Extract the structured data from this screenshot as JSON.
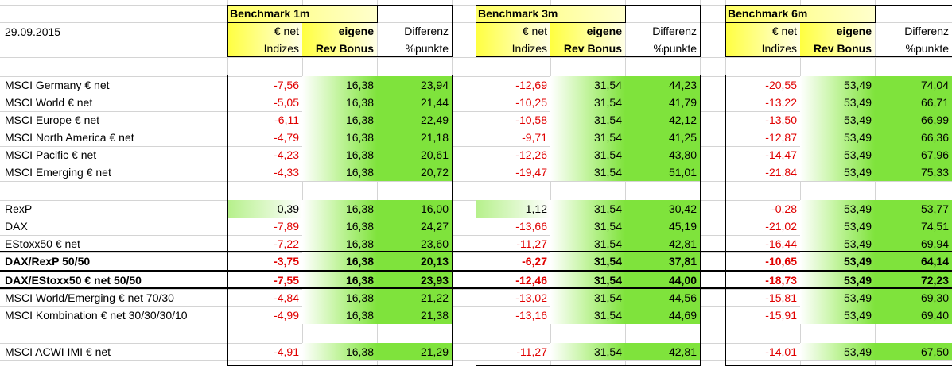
{
  "date": "29.09.2015",
  "groups": [
    {
      "title": "Benchmark 1m"
    },
    {
      "title": "Benchmark 3m"
    },
    {
      "title": "Benchmark 6m"
    }
  ],
  "col_headers": {
    "a1": "€ net",
    "a2": "Indizes",
    "b1": "eigene",
    "b2": "Rev Bonus",
    "c1": "Differenz",
    "c2": "%punkte"
  },
  "rows": [
    {
      "label": "MSCI Germany € net",
      "v": [
        "-7,56",
        "16,38",
        "23,94",
        "-12,69",
        "31,54",
        "44,23",
        "-20,55",
        "53,49",
        "74,04"
      ]
    },
    {
      "label": "MSCI World € net",
      "v": [
        "-5,05",
        "16,38",
        "21,44",
        "-10,25",
        "31,54",
        "41,79",
        "-13,22",
        "53,49",
        "66,71"
      ]
    },
    {
      "label": "MSCI Europe € net",
      "v": [
        "-6,11",
        "16,38",
        "22,49",
        "-10,58",
        "31,54",
        "42,12",
        "-13,50",
        "53,49",
        "66,99"
      ]
    },
    {
      "label": "MSCI North America € net",
      "v": [
        "-4,79",
        "16,38",
        "21,18",
        "-9,71",
        "31,54",
        "41,25",
        "-12,87",
        "53,49",
        "66,36"
      ]
    },
    {
      "label": "MSCI Pacific € net",
      "v": [
        "-4,23",
        "16,38",
        "20,61",
        "-12,26",
        "31,54",
        "43,80",
        "-14,47",
        "53,49",
        "67,96"
      ]
    },
    {
      "label": "MSCI Emerging € net",
      "v": [
        "-4,33",
        "16,38",
        "20,72",
        "-19,47",
        "31,54",
        "51,01",
        "-21,84",
        "53,49",
        "75,33"
      ]
    },
    {
      "label": "RexP",
      "v": [
        "0,39",
        "16,38",
        "16,00",
        "1,12",
        "31,54",
        "30,42",
        "-0,28",
        "53,49",
        "53,77"
      ]
    },
    {
      "label": "DAX",
      "v": [
        "-7,89",
        "16,38",
        "24,27",
        "-13,66",
        "31,54",
        "45,19",
        "-21,02",
        "53,49",
        "74,51"
      ]
    },
    {
      "label": "EStoxx50 € net",
      "v": [
        "-7,22",
        "16,38",
        "23,60",
        "-11,27",
        "31,54",
        "42,81",
        "-16,44",
        "53,49",
        "69,94"
      ]
    },
    {
      "label": "DAX/RexP 50/50",
      "v": [
        "-3,75",
        "16,38",
        "20,13",
        "-6,27",
        "31,54",
        "37,81",
        "-10,65",
        "53,49",
        "64,14"
      ]
    },
    {
      "label": "DAX/EStoxx50 € net 50/50",
      "v": [
        "-7,55",
        "16,38",
        "23,93",
        "-12,46",
        "31,54",
        "44,00",
        "-18,73",
        "53,49",
        "72,23"
      ]
    },
    {
      "label": "MSCI World/Emerging € net 70/30",
      "v": [
        "-4,84",
        "16,38",
        "21,22",
        "-13,02",
        "31,54",
        "44,56",
        "-15,81",
        "53,49",
        "69,30"
      ]
    },
    {
      "label": "MSCI Kombination € net 30/30/30/10",
      "v": [
        "-4,99",
        "16,38",
        "21,38",
        "-13,16",
        "31,54",
        "44,69",
        "-15,91",
        "53,49",
        "69,40"
      ]
    },
    {
      "label": "MSCI ACWI IMI € net",
      "v": [
        "-4,91",
        "16,38",
        "21,29",
        "-11,27",
        "31,54",
        "42,81",
        "-14,01",
        "53,49",
        "67,50"
      ]
    }
  ]
}
